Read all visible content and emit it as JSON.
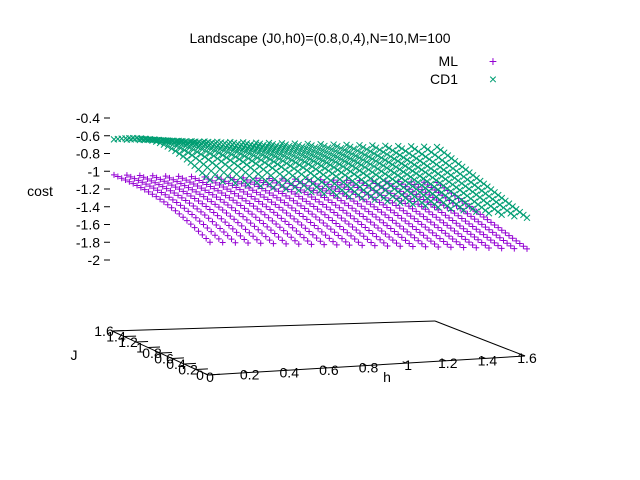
{
  "chart_data": {
    "type": "surface",
    "title": "Landscape (J0,h0)=(0.8,0,4),N=10,M=100",
    "xlabel": "h",
    "ylabel": "J",
    "zlabel": "cost",
    "x_ticks": [
      "0",
      "0.2",
      "0.4",
      "0.6",
      "0.8",
      "1",
      "1.2",
      "1.4",
      "1.6"
    ],
    "y_ticks": [
      "0",
      "0.2",
      "0.4",
      "0.6",
      "0.8",
      "1",
      "1.2",
      "1.4",
      "1.6"
    ],
    "z_ticks": [
      "-0.4",
      "-0.6",
      "-0.8",
      "-1",
      "-1.2",
      "-1.4",
      "-1.6",
      "-1.8",
      "-2"
    ],
    "xlim": [
      0,
      1.6
    ],
    "ylim": [
      0,
      1.6
    ],
    "zlim": [
      -2,
      -0.4
    ],
    "legend_position": "top-right",
    "grid": false,
    "series": [
      {
        "name": "ML",
        "marker": "+",
        "color": "#9400d3",
        "corner_values": {
          "J0_h0": -1.8,
          "J0_h1.6": -1.9,
          "J1.6_h0": -1.1,
          "J1.6_h1.6": -1.2
        },
        "max_value": -1.0
      },
      {
        "name": "CD1",
        "marker": "×",
        "color": "#009e73",
        "corner_values": {
          "J0_h0": -1.1,
          "J0_h1.6": -1.55,
          "J1.6_h0": -0.7,
          "J1.6_h1.6": -0.8
        },
        "max_value": -0.5
      }
    ]
  }
}
